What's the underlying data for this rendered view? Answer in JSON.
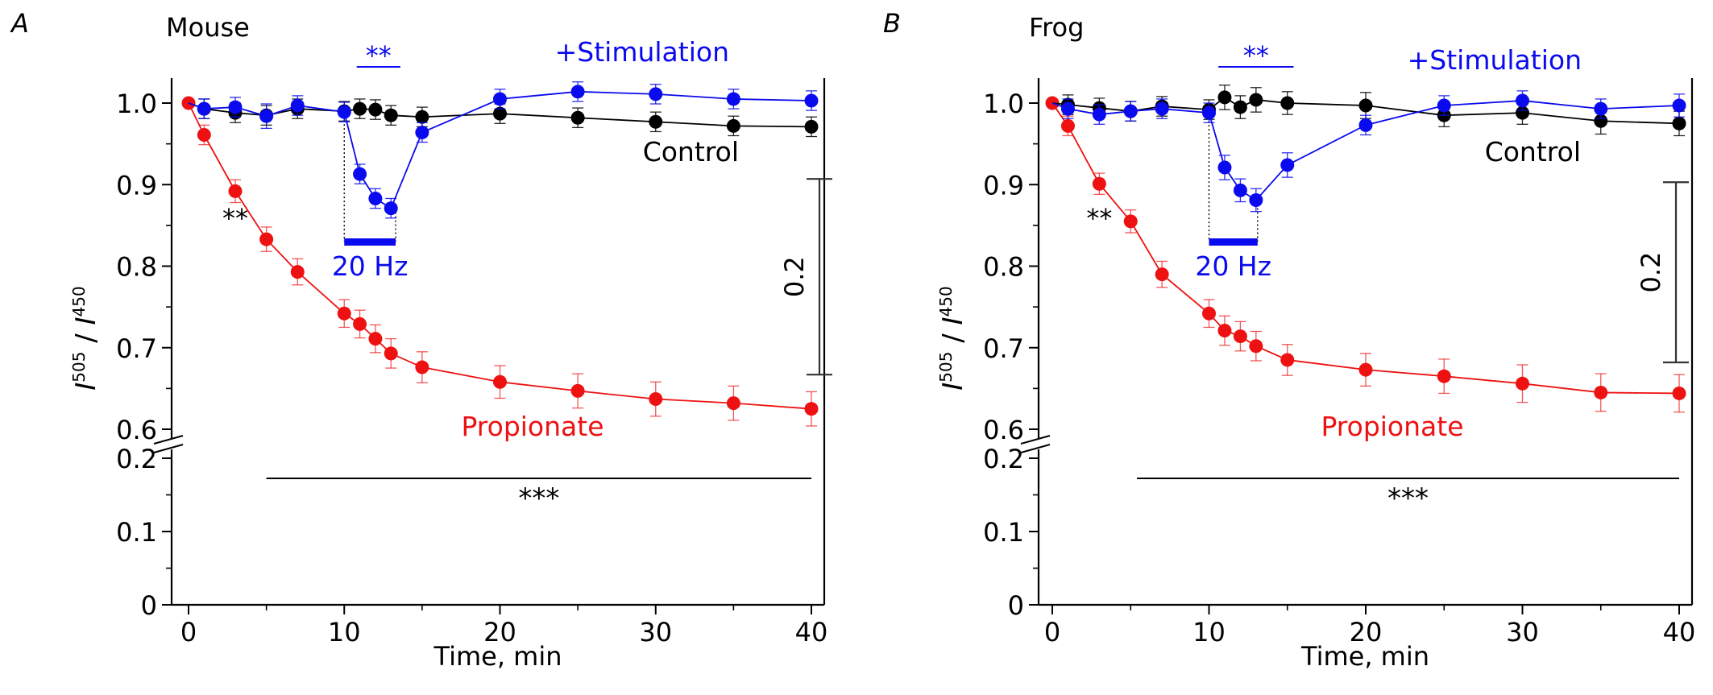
{
  "chart_data": [
    {
      "type": "line",
      "panel_label": "A",
      "title": "Mouse",
      "xlabel": "Time, min",
      "ylabel_main": "I",
      "ylabel_sup1": "505",
      "ylabel_slash": "/",
      "ylabel_sup2": "450",
      "xlim": [
        -1,
        41
      ],
      "ylim_upper": [
        0.6,
        1.03
      ],
      "ylim_lower": [
        0,
        0.2
      ],
      "x_ticks": [
        "0",
        "10",
        "20",
        "30",
        "40"
      ],
      "y_ticks_upper": [
        "0.6",
        "0.7",
        "0.8",
        "0.9",
        "1.0"
      ],
      "y_ticks_lower": [
        "0",
        "0.1",
        "0.2"
      ],
      "series": [
        {
          "name": "Control",
          "color": "#000000",
          "x": [
            1,
            3,
            5,
            7,
            10,
            11,
            12,
            13,
            15,
            20,
            25,
            30,
            35,
            40
          ],
          "y": [
            0.993,
            0.988,
            0.985,
            0.993,
            0.99,
            0.993,
            0.992,
            0.985,
            0.983,
            0.987,
            0.982,
            0.977,
            0.972,
            0.971
          ],
          "err": [
            0.012,
            0.012,
            0.012,
            0.012,
            0.012,
            0.012,
            0.012,
            0.012,
            0.012,
            0.012,
            0.012,
            0.012,
            0.012,
            0.012
          ]
        },
        {
          "name": "+Stimulation",
          "color": "#0a0aee",
          "x": [
            1,
            3,
            5,
            7,
            10,
            11,
            12,
            13,
            15,
            20,
            25,
            30,
            35,
            40
          ],
          "y": [
            0.993,
            0.995,
            0.984,
            0.997,
            0.989,
            0.913,
            0.883,
            0.871,
            0.964,
            1.005,
            1.014,
            1.011,
            1.005,
            1.003
          ],
          "err": [
            0.012,
            0.012,
            0.015,
            0.012,
            0.012,
            0.012,
            0.012,
            0.012,
            0.012,
            0.012,
            0.012,
            0.012,
            0.012,
            0.012
          ]
        },
        {
          "name": "Propionate",
          "color": "#ee1111",
          "x": [
            0,
            1,
            3,
            5,
            7,
            10,
            11,
            12,
            13,
            15,
            20,
            25,
            30,
            35,
            40
          ],
          "y": [
            1.0,
            0.961,
            0.892,
            0.833,
            0.793,
            0.742,
            0.729,
            0.711,
            0.693,
            0.676,
            0.658,
            0.647,
            0.637,
            0.632,
            0.625
          ],
          "err": [
            0,
            0.012,
            0.014,
            0.015,
            0.016,
            0.017,
            0.017,
            0.017,
            0.018,
            0.019,
            0.02,
            0.021,
            0.021,
            0.021,
            0.021
          ]
        }
      ],
      "stim_bar": {
        "x": [
          10,
          13.3
        ],
        "label": "20 Hz"
      },
      "scale_bar": {
        "label": "0.2",
        "y": [
          0.667,
          0.907
        ]
      },
      "annotations": {
        "sig_top": "**",
        "sig_propionate": "**",
        "sig_bottom": "***",
        "legend_control": "Control",
        "legend_stim": "+Stimulation",
        "legend_prop": "Propionate"
      },
      "sig_top_line": [
        10.8,
        13.6
      ],
      "sig_bottom_line": [
        5,
        40
      ],
      "sig_propionate_x": 3
    },
    {
      "type": "line",
      "panel_label": "B",
      "title": "Frog",
      "xlabel": "Time, min",
      "ylabel_main": "I",
      "ylabel_sup1": "505",
      "ylabel_slash": "/",
      "ylabel_sup2": "450",
      "xlim": [
        -1,
        41
      ],
      "ylim_upper": [
        0.6,
        1.03
      ],
      "ylim_lower": [
        0,
        0.2
      ],
      "x_ticks": [
        "0",
        "10",
        "20",
        "30",
        "40"
      ],
      "y_ticks_upper": [
        "0.6",
        "0.7",
        "0.8",
        "0.9",
        "1.0"
      ],
      "y_ticks_lower": [
        "0",
        "0.1",
        "0.2"
      ],
      "series": [
        {
          "name": "Control",
          "color": "#000000",
          "x": [
            1,
            3,
            5,
            7,
            10,
            11,
            12,
            13,
            15,
            20,
            25,
            30,
            35,
            40
          ],
          "y": [
            0.998,
            0.994,
            0.99,
            0.996,
            0.992,
            1.007,
            0.995,
            1.004,
            1.0,
            0.997,
            0.985,
            0.988,
            0.978,
            0.975
          ],
          "err": [
            0.012,
            0.012,
            0.012,
            0.012,
            0.012,
            0.015,
            0.014,
            0.015,
            0.014,
            0.016,
            0.014,
            0.014,
            0.016,
            0.015
          ]
        },
        {
          "name": "+Stimulation",
          "color": "#0a0aee",
          "x": [
            1,
            3,
            5,
            7,
            10,
            11,
            12,
            13,
            15,
            20,
            25,
            30,
            35,
            40
          ],
          "y": [
            0.993,
            0.986,
            0.99,
            0.993,
            0.988,
            0.921,
            0.893,
            0.881,
            0.924,
            0.973,
            0.997,
            1.003,
            0.993,
            0.997
          ],
          "err": [
            0.012,
            0.012,
            0.012,
            0.012,
            0.012,
            0.015,
            0.014,
            0.014,
            0.015,
            0.012,
            0.012,
            0.012,
            0.012,
            0.014
          ]
        },
        {
          "name": "Propionate",
          "color": "#ee1111",
          "x": [
            0,
            1,
            3,
            5,
            7,
            10,
            11,
            12,
            13,
            15,
            20,
            25,
            30,
            35,
            40
          ],
          "y": [
            1.0,
            0.972,
            0.901,
            0.855,
            0.79,
            0.742,
            0.721,
            0.714,
            0.702,
            0.685,
            0.673,
            0.665,
            0.656,
            0.645,
            0.644
          ],
          "err": [
            0,
            0.012,
            0.013,
            0.014,
            0.016,
            0.017,
            0.018,
            0.018,
            0.018,
            0.019,
            0.02,
            0.021,
            0.023,
            0.023,
            0.023
          ]
        }
      ],
      "stim_bar": {
        "x": [
          10,
          13.1
        ],
        "label": "20 Hz"
      },
      "scale_bar": {
        "label": "0.2",
        "y": [
          0.682,
          0.903
        ]
      },
      "annotations": {
        "sig_top": "**",
        "sig_propionate": "**",
        "sig_bottom": "***",
        "legend_control": "Control",
        "legend_stim": "+Stimulation",
        "legend_prop": "Propionate"
      },
      "sig_top_line": [
        10.6,
        15.4
      ],
      "sig_bottom_line": [
        5.4,
        40
      ],
      "sig_propionate_x": 3
    }
  ]
}
